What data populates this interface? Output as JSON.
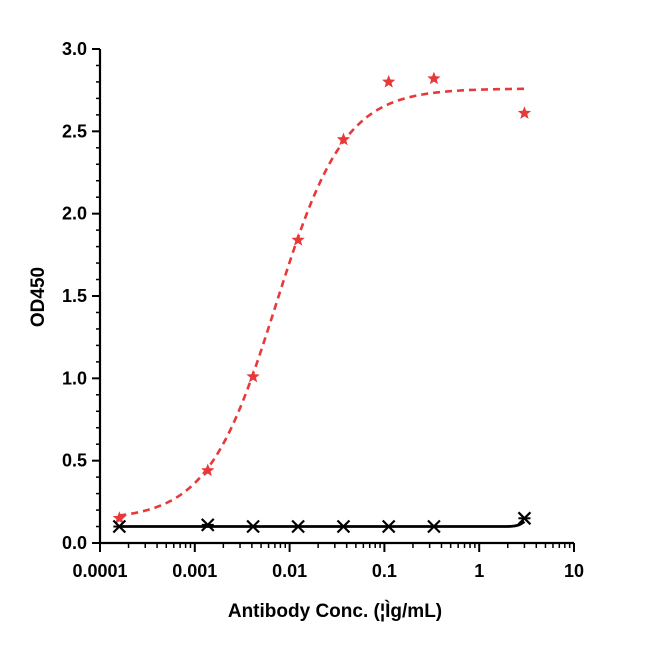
{
  "chart_data": {
    "type": "scatter",
    "title": "",
    "xlabel": "Antibody Conc. (¦Ìg/mL)",
    "ylabel": "OD450",
    "x_scale": "log",
    "xlim": [
      0.0001,
      10
    ],
    "ylim": [
      0,
      3.0
    ],
    "x_ticks": [
      "0.0001",
      "0.001",
      "0.01",
      "0.1",
      "1",
      "10"
    ],
    "y_ticks": [
      "0.0",
      "0.5",
      "1.0",
      "1.5",
      "2.0",
      "2.5",
      "3.0"
    ],
    "grid": false,
    "legend": "none",
    "series": [
      {
        "color": "#e8393a",
        "marker": "star",
        "line_style": "dashed",
        "x": [
          0.00016,
          0.00137,
          0.00412,
          0.0123,
          0.037,
          0.111,
          0.333,
          3.0
        ],
        "y": [
          0.15,
          0.44,
          1.01,
          1.84,
          2.45,
          2.8,
          2.82,
          2.61
        ]
      },
      {
        "color": "#000000",
        "marker": "x-star",
        "line_style": "solid",
        "x": [
          0.00016,
          0.00137,
          0.00412,
          0.0123,
          0.037,
          0.111,
          0.333,
          3.0
        ],
        "y": [
          0.1,
          0.11,
          0.1,
          0.1,
          0.1,
          0.1,
          0.1,
          0.15
        ]
      }
    ]
  }
}
